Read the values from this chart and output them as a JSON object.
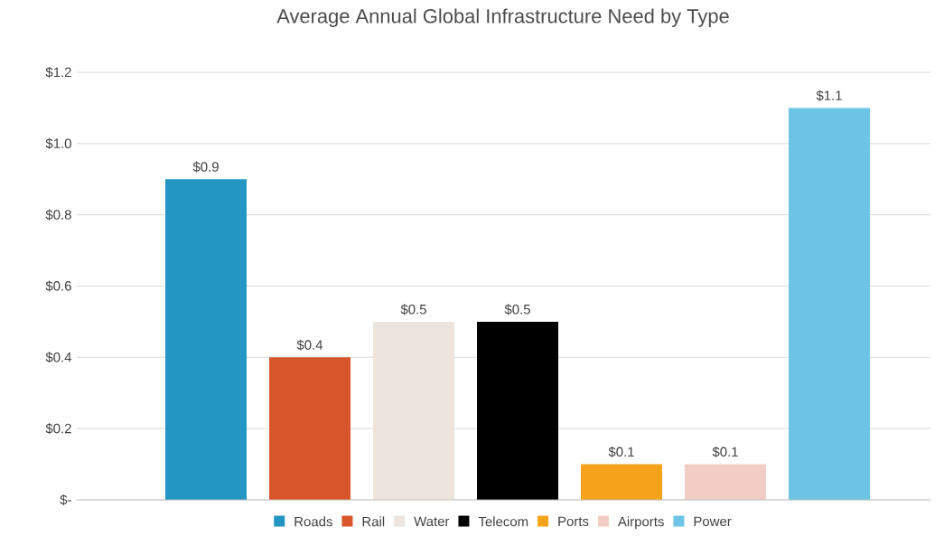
{
  "chart_data": {
    "type": "bar",
    "title": "Average Annual Global Infrastructure Need by Type",
    "categories": [
      null
    ],
    "series": [
      {
        "name": "Roads",
        "color": "#2396c3",
        "values": [
          0.9
        ],
        "value_labels": [
          "$0.9"
        ]
      },
      {
        "name": "Rail",
        "color": "#d9552b",
        "values": [
          0.4
        ],
        "value_labels": [
          "$0.4"
        ]
      },
      {
        "name": "Water",
        "color": "#ede4dd",
        "values": [
          0.5
        ],
        "value_labels": [
          "$0.5"
        ]
      },
      {
        "name": "Telecom",
        "color": "#000000",
        "values": [
          0.5
        ],
        "value_labels": [
          "$0.5"
        ]
      },
      {
        "name": "Ports",
        "color": "#f6a31c",
        "values": [
          0.1
        ],
        "value_labels": [
          "$0.1"
        ]
      },
      {
        "name": "Airports",
        "color": "#f2cdc3",
        "values": [
          0.1
        ],
        "value_labels": [
          "$0.1"
        ]
      },
      {
        "name": "Power",
        "color": "#6cc4e6",
        "values": [
          1.1
        ],
        "value_labels": [
          "$1.1"
        ]
      }
    ],
    "ylim": [
      0,
      1.2
    ],
    "yticks": [
      {
        "value": 0,
        "label": "$-"
      },
      {
        "value": 0.2,
        "label": "$0.2"
      },
      {
        "value": 0.4,
        "label": "$0.4"
      },
      {
        "value": 0.6,
        "label": "$0.6"
      },
      {
        "value": 0.8,
        "label": "$0.8"
      },
      {
        "value": 1.0,
        "label": "$1.0"
      },
      {
        "value": 1.2,
        "label": "$1.2"
      }
    ],
    "grid": "y",
    "legend": "bottom"
  }
}
